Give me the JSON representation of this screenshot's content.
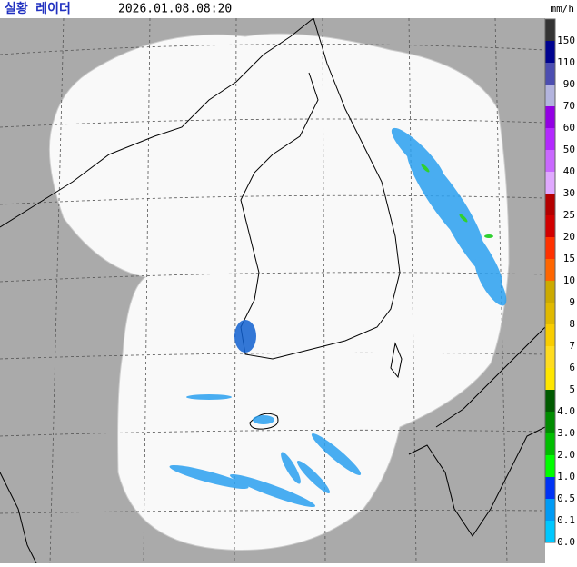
{
  "header": {
    "title": "실황 레이더",
    "time": "2026.01.08.08:20",
    "unit": "mm/h"
  },
  "legend": {
    "items": [
      {
        "label": "150",
        "color": "#333333"
      },
      {
        "label": "110",
        "color": "#000390"
      },
      {
        "label": "90",
        "color": "#4c4eb1"
      },
      {
        "label": "70",
        "color": "#b3b4de"
      },
      {
        "label": "60",
        "color": "#9300e4"
      },
      {
        "label": "50",
        "color": "#b329ff"
      },
      {
        "label": "40",
        "color": "#c969ff"
      },
      {
        "label": "30",
        "color": "#e0a9ff"
      },
      {
        "label": "25",
        "color": "#b40000"
      },
      {
        "label": "20",
        "color": "#d20000"
      },
      {
        "label": "15",
        "color": "#ff3200"
      },
      {
        "label": "10",
        "color": "#ff6600"
      },
      {
        "label": "9",
        "color": "#ccaa00"
      },
      {
        "label": "8",
        "color": "#e0b900"
      },
      {
        "label": "7",
        "color": "#f9cd00"
      },
      {
        "label": "6",
        "color": "#ffdc1f"
      },
      {
        "label": "5",
        "color": "#ffe600"
      },
      {
        "label": "4.0",
        "color": "#005a00"
      },
      {
        "label": "3.0",
        "color": "#008c00"
      },
      {
        "label": "2.0",
        "color": "#00be00"
      },
      {
        "label": "1.0",
        "color": "#00ff00"
      },
      {
        "label": "0.5",
        "color": "#0033f5"
      },
      {
        "label": "0.1",
        "color": "#009bf5"
      },
      {
        "label": "0.0",
        "color": "#00c8ff"
      }
    ]
  }
}
